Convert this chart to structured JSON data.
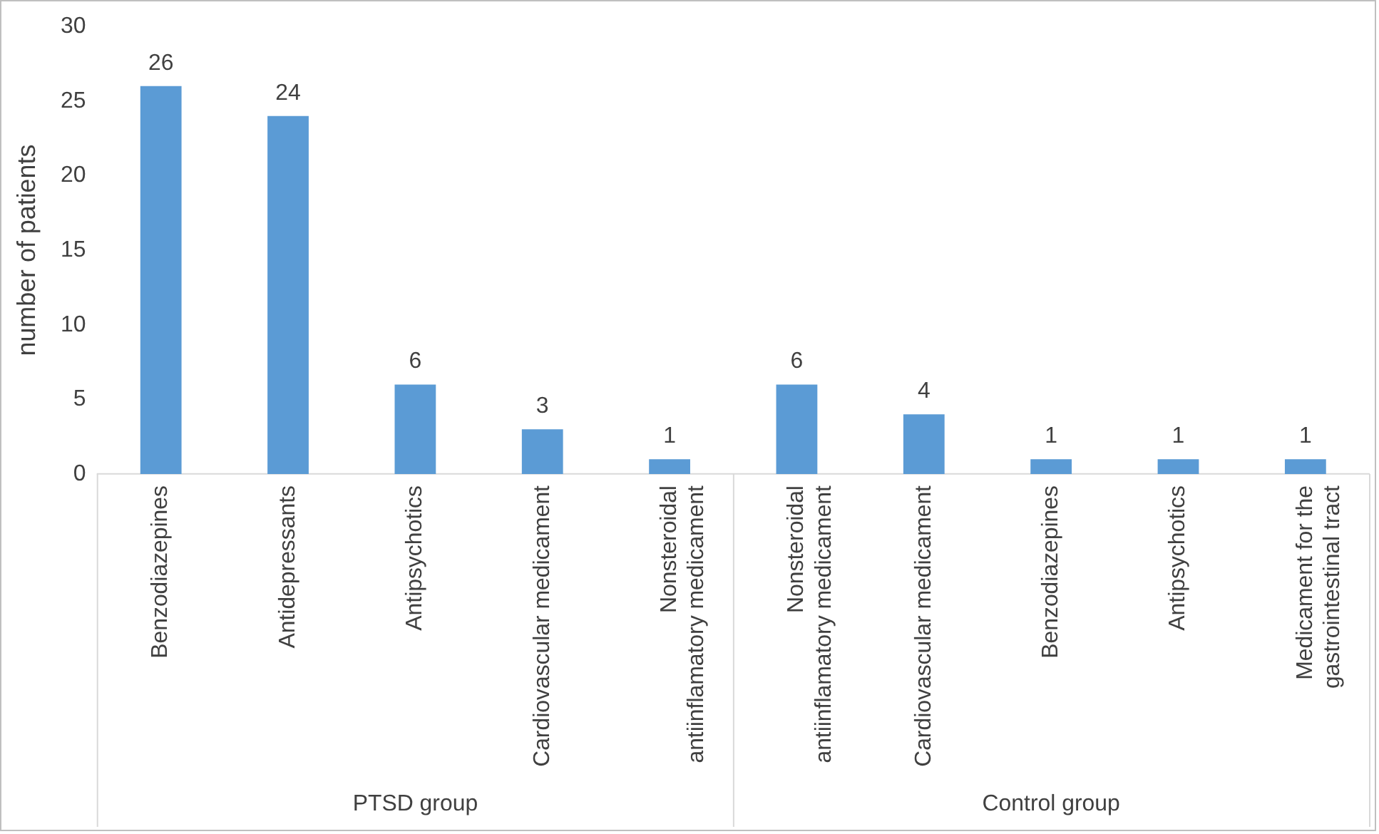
{
  "chart_data": {
    "type": "bar",
    "ylabel": "number of patients",
    "categories": [
      "Benzodiazepines",
      "Antidepressants",
      "Antipsychotics",
      "Cardiovascular medicament",
      "Nonsteroidal antiinflamatory medicament",
      "Nonsteroidal antiinflamatory medicament",
      "Cardiovascular medicament",
      "Benzodiazepines",
      "Antipsychotics",
      "Medicament for the gastrointestinal tract"
    ],
    "values": [
      26,
      24,
      6,
      3,
      1,
      6,
      4,
      1,
      1,
      1
    ],
    "color": "#5b9bd5",
    "ylim": [
      0,
      30
    ],
    "yticks": [
      0,
      5,
      10,
      15,
      20,
      25,
      30
    ],
    "grid": false,
    "legend": false,
    "data_labels": true,
    "annotations": [
      "PTSD group",
      "Control group"
    ]
  }
}
